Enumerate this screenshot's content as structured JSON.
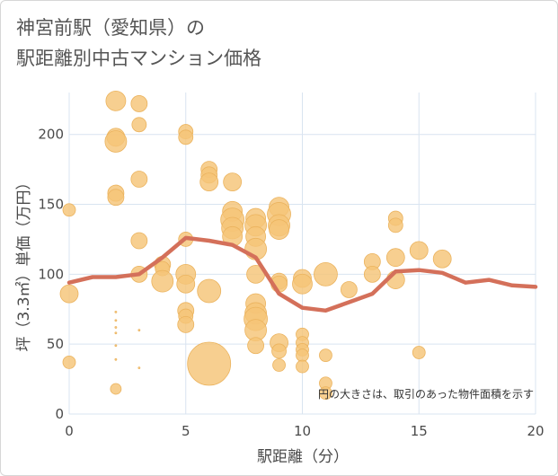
{
  "chart_data": {
    "type": "scatter",
    "title_lines": [
      "神宮前駅（愛知県）の",
      "駅距離別中古マンション価格"
    ],
    "xlabel": "駅距離（分）",
    "ylabel": "坪（3.3㎡）単価（万円）",
    "xlim": [
      0,
      20
    ],
    "ylim": [
      0,
      230
    ],
    "x_ticks": [
      0,
      5,
      10,
      15,
      20
    ],
    "y_ticks": [
      0,
      50,
      100,
      150,
      200
    ],
    "grid": true,
    "annotation": "円の大きさは、取引のあった物件面積を示す",
    "colors": {
      "bubble": "#f5c477",
      "bubble_stroke": "#ebb35e",
      "line": "#d4705a",
      "grid": "#d9e4f0",
      "text": "#4a4a4a"
    },
    "bubbles": [
      {
        "x": 0,
        "y": 146,
        "s": 7
      },
      {
        "x": 0,
        "y": 86,
        "s": 10
      },
      {
        "x": 0,
        "y": 37,
        "s": 7
      },
      {
        "x": 2,
        "y": 224,
        "s": 11
      },
      {
        "x": 2,
        "y": 198,
        "s": 10
      },
      {
        "x": 2,
        "y": 195,
        "s": 12
      },
      {
        "x": 2,
        "y": 158,
        "s": 9
      },
      {
        "x": 2,
        "y": 155,
        "s": 9
      },
      {
        "x": 2,
        "y": 18,
        "s": 6
      },
      {
        "x": 2,
        "y": 73,
        "s": 1
      },
      {
        "x": 2,
        "y": 67,
        "s": 1
      },
      {
        "x": 2,
        "y": 62,
        "s": 1
      },
      {
        "x": 2,
        "y": 58,
        "s": 1
      },
      {
        "x": 2,
        "y": 49,
        "s": 1
      },
      {
        "x": 2,
        "y": 39,
        "s": 1
      },
      {
        "x": 3,
        "y": 222,
        "s": 9
      },
      {
        "x": 3,
        "y": 207,
        "s": 8
      },
      {
        "x": 3,
        "y": 168,
        "s": 9
      },
      {
        "x": 3,
        "y": 124,
        "s": 9
      },
      {
        "x": 3,
        "y": 100,
        "s": 9
      },
      {
        "x": 3,
        "y": 60,
        "s": 1
      },
      {
        "x": 3,
        "y": 33,
        "s": 1
      },
      {
        "x": 4,
        "y": 107,
        "s": 9
      },
      {
        "x": 4,
        "y": 104,
        "s": 8
      },
      {
        "x": 4,
        "y": 95,
        "s": 12
      },
      {
        "x": 5,
        "y": 202,
        "s": 8
      },
      {
        "x": 5,
        "y": 198,
        "s": 8
      },
      {
        "x": 5,
        "y": 125,
        "s": 8
      },
      {
        "x": 5,
        "y": 100,
        "s": 11
      },
      {
        "x": 5,
        "y": 93,
        "s": 10
      },
      {
        "x": 5,
        "y": 74,
        "s": 9
      },
      {
        "x": 5,
        "y": 70,
        "s": 8
      },
      {
        "x": 5,
        "y": 64,
        "s": 9
      },
      {
        "x": 6,
        "y": 175,
        "s": 9
      },
      {
        "x": 6,
        "y": 171,
        "s": 9
      },
      {
        "x": 6,
        "y": 166,
        "s": 10
      },
      {
        "x": 6,
        "y": 88,
        "s": 13
      },
      {
        "x": 6,
        "y": 36,
        "s": 24
      },
      {
        "x": 7,
        "y": 166,
        "s": 10
      },
      {
        "x": 7,
        "y": 145,
        "s": 11
      },
      {
        "x": 7,
        "y": 139,
        "s": 13
      },
      {
        "x": 7,
        "y": 133,
        "s": 12
      },
      {
        "x": 7,
        "y": 127,
        "s": 11
      },
      {
        "x": 8,
        "y": 140,
        "s": 11
      },
      {
        "x": 8,
        "y": 135,
        "s": 12
      },
      {
        "x": 8,
        "y": 127,
        "s": 11
      },
      {
        "x": 8,
        "y": 118,
        "s": 12
      },
      {
        "x": 8,
        "y": 100,
        "s": 10
      },
      {
        "x": 8,
        "y": 79,
        "s": 11
      },
      {
        "x": 8,
        "y": 72,
        "s": 12
      },
      {
        "x": 8,
        "y": 68,
        "s": 13
      },
      {
        "x": 8,
        "y": 60,
        "s": 12
      },
      {
        "x": 8,
        "y": 49,
        "s": 9
      },
      {
        "x": 9,
        "y": 148,
        "s": 11
      },
      {
        "x": 9,
        "y": 143,
        "s": 13
      },
      {
        "x": 9,
        "y": 135,
        "s": 12
      },
      {
        "x": 9,
        "y": 132,
        "s": 11
      },
      {
        "x": 9,
        "y": 95,
        "s": 9
      },
      {
        "x": 9,
        "y": 93,
        "s": 9
      },
      {
        "x": 9,
        "y": 51,
        "s": 10
      },
      {
        "x": 9,
        "y": 45,
        "s": 8
      },
      {
        "x": 9,
        "y": 35,
        "s": 7
      },
      {
        "x": 10,
        "y": 97,
        "s": 10
      },
      {
        "x": 10,
        "y": 93,
        "s": 11
      },
      {
        "x": 10,
        "y": 57,
        "s": 7
      },
      {
        "x": 10,
        "y": 51,
        "s": 7
      },
      {
        "x": 10,
        "y": 46,
        "s": 7
      },
      {
        "x": 10,
        "y": 42,
        "s": 7
      },
      {
        "x": 10,
        "y": 34,
        "s": 7
      },
      {
        "x": 11,
        "y": 100,
        "s": 13
      },
      {
        "x": 11,
        "y": 42,
        "s": 7
      },
      {
        "x": 11,
        "y": 22,
        "s": 7
      },
      {
        "x": 11,
        "y": 15,
        "s": 7
      },
      {
        "x": 12,
        "y": 89,
        "s": 9
      },
      {
        "x": 13,
        "y": 109,
        "s": 9
      },
      {
        "x": 13,
        "y": 100,
        "s": 9
      },
      {
        "x": 14,
        "y": 140,
        "s": 8
      },
      {
        "x": 14,
        "y": 135,
        "s": 8
      },
      {
        "x": 14,
        "y": 112,
        "s": 10
      },
      {
        "x": 14,
        "y": 96,
        "s": 10
      },
      {
        "x": 15,
        "y": 117,
        "s": 10
      },
      {
        "x": 15,
        "y": 44,
        "s": 7
      },
      {
        "x": 16,
        "y": 111,
        "s": 10
      }
    ],
    "series": [
      {
        "type": "line",
        "x": [
          0,
          1,
          2,
          3,
          4,
          5,
          6,
          7,
          8,
          9,
          10,
          11,
          12,
          13,
          14,
          15,
          16,
          17,
          18,
          19,
          20
        ],
        "values": [
          94,
          98,
          98,
          100,
          112,
          126,
          124,
          121,
          112,
          86,
          76,
          74,
          80,
          86,
          102,
          103,
          101,
          94,
          96,
          92,
          91
        ]
      }
    ]
  }
}
